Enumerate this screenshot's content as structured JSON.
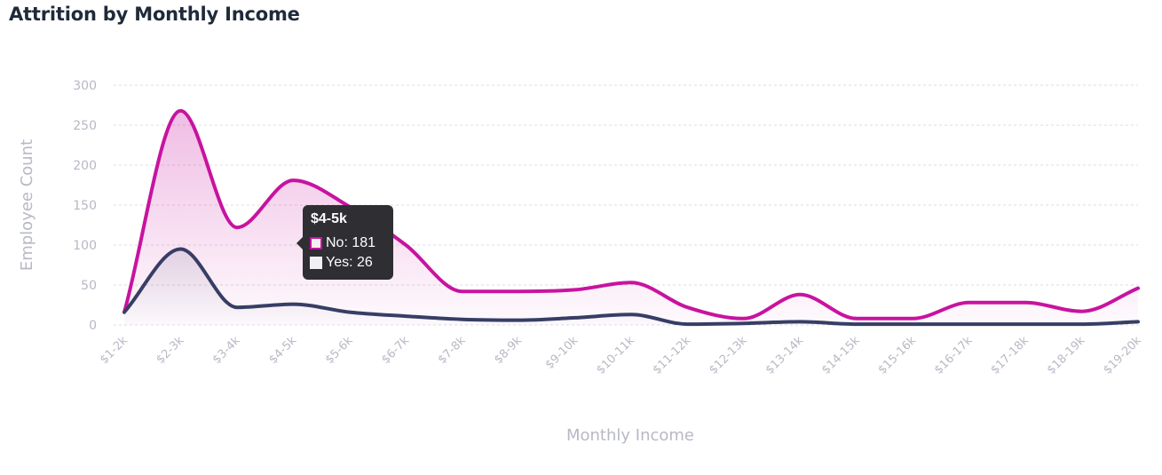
{
  "chart_data": {
    "type": "area",
    "title": "Attrition by Monthly Income",
    "xlabel": "Monthly Income",
    "ylabel": "Employee Count",
    "ylim": [
      0,
      300
    ],
    "yticks": [
      0,
      50,
      100,
      150,
      200,
      250,
      300
    ],
    "grid": true,
    "categories": [
      "$1-2k",
      "$2-3k",
      "$3-4k",
      "$4-5k",
      "$5-6k",
      "$6-7k",
      "$7-8k",
      "$8-9k",
      "$9-10k",
      "$10-11k",
      "$11-12k",
      "$12-13k",
      "$13-14k",
      "$14-15k",
      "$15-16k",
      "$16-17k",
      "$17-18k",
      "$18-19k",
      "$19-20k"
    ],
    "series": [
      {
        "name": "No",
        "color": "#c8139f",
        "values": [
          16,
          268,
          122,
          181,
          148,
          100,
          42,
          42,
          44,
          53,
          22,
          8,
          38,
          8,
          8,
          28,
          28,
          17,
          46
        ]
      },
      {
        "name": "Yes",
        "color": "#373e66",
        "values": [
          16,
          95,
          22,
          26,
          16,
          11,
          7,
          6,
          9,
          13,
          1,
          2,
          4,
          1,
          1,
          1,
          1,
          1,
          4
        ]
      }
    ],
    "tooltip": {
      "category": "$4-5k",
      "rows": [
        {
          "label": "No: 181",
          "swatch_fill": "#f1f1f4",
          "swatch_border": "#c8139f"
        },
        {
          "label": "Yes: 26",
          "swatch_fill": "#f1f1f4",
          "swatch_border": "#f1f1f4"
        }
      ]
    }
  }
}
